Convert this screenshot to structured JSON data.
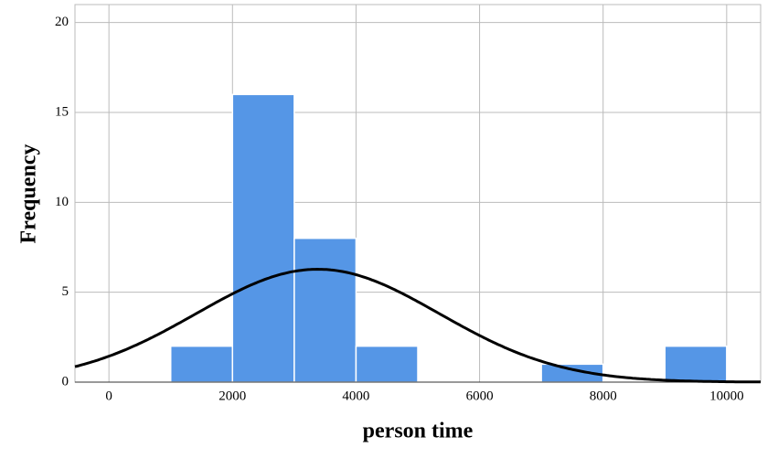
{
  "chart_data": {
    "type": "histogram",
    "x_label": "person time",
    "y_label": "Frequency",
    "bins": [
      1000,
      2000,
      3000,
      4000,
      5000,
      6000,
      7000,
      8000,
      9000,
      10000
    ],
    "values": [
      2,
      16,
      8,
      2,
      0,
      0,
      1,
      0,
      2
    ],
    "color": "#5596e6",
    "curve": {
      "mean": 3380,
      "sd": 1970,
      "color": "#000000"
    },
    "xlim": [
      -550,
      10550
    ],
    "xticks": [
      0,
      2000,
      4000,
      6000,
      8000,
      10000
    ],
    "ylim": [
      0,
      21
    ],
    "yticks": [
      0,
      5,
      10,
      15,
      20
    ],
    "grid": true
  }
}
